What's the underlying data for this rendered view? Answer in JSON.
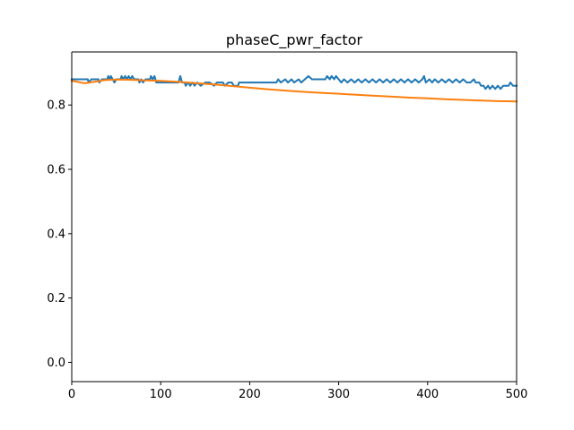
{
  "chart_data": {
    "type": "line",
    "title": "phaseC_pwr_factor",
    "xlabel": "",
    "ylabel": "",
    "xlim": [
      0,
      500
    ],
    "ylim": [
      -0.06,
      0.965
    ],
    "x_ticks": [
      0,
      100,
      200,
      300,
      400,
      500
    ],
    "y_ticks": [
      0.0,
      0.2,
      0.4,
      0.6,
      0.8
    ],
    "grid": false,
    "legend": "none",
    "series": [
      {
        "color": "#1f77b4",
        "points": [
          [
            0,
            0.88
          ],
          [
            18,
            0.88
          ],
          [
            19,
            0.87
          ],
          [
            22,
            0.88
          ],
          [
            30,
            0.88
          ],
          [
            31,
            0.87
          ],
          [
            34,
            0.88
          ],
          [
            40,
            0.88
          ],
          [
            41,
            0.89
          ],
          [
            43,
            0.88
          ],
          [
            44,
            0.89
          ],
          [
            46,
            0.88
          ],
          [
            48,
            0.87
          ],
          [
            50,
            0.88
          ],
          [
            55,
            0.88
          ],
          [
            56,
            0.89
          ],
          [
            58,
            0.88
          ],
          [
            60,
            0.89
          ],
          [
            62,
            0.88
          ],
          [
            64,
            0.89
          ],
          [
            66,
            0.88
          ],
          [
            68,
            0.89
          ],
          [
            70,
            0.88
          ],
          [
            75,
            0.88
          ],
          [
            76,
            0.87
          ],
          [
            78,
            0.88
          ],
          [
            80,
            0.87
          ],
          [
            83,
            0.88
          ],
          [
            88,
            0.88
          ],
          [
            89,
            0.89
          ],
          [
            91,
            0.88
          ],
          [
            93,
            0.89
          ],
          [
            95,
            0.87
          ],
          [
            100,
            0.87
          ],
          [
            105,
            0.87
          ],
          [
            115,
            0.87
          ],
          [
            120,
            0.87
          ],
          [
            122,
            0.89
          ],
          [
            124,
            0.87
          ],
          [
            127,
            0.87
          ],
          [
            128,
            0.86
          ],
          [
            131,
            0.87
          ],
          [
            133,
            0.86
          ],
          [
            136,
            0.87
          ],
          [
            138,
            0.86
          ],
          [
            141,
            0.87
          ],
          [
            145,
            0.86
          ],
          [
            150,
            0.87
          ],
          [
            155,
            0.87
          ],
          [
            160,
            0.86
          ],
          [
            163,
            0.87
          ],
          [
            170,
            0.87
          ],
          [
            172,
            0.86
          ],
          [
            176,
            0.87
          ],
          [
            180,
            0.87
          ],
          [
            182,
            0.86
          ],
          [
            187,
            0.86
          ],
          [
            188,
            0.87
          ],
          [
            230,
            0.87
          ],
          [
            232,
            0.88
          ],
          [
            235,
            0.87
          ],
          [
            240,
            0.88
          ],
          [
            243,
            0.87
          ],
          [
            247,
            0.88
          ],
          [
            250,
            0.87
          ],
          [
            255,
            0.88
          ],
          [
            258,
            0.87
          ],
          [
            262,
            0.88
          ],
          [
            266,
            0.89
          ],
          [
            270,
            0.88
          ],
          [
            275,
            0.88
          ],
          [
            285,
            0.88
          ],
          [
            287,
            0.89
          ],
          [
            290,
            0.88
          ],
          [
            292,
            0.89
          ],
          [
            295,
            0.88
          ],
          [
            297,
            0.89
          ],
          [
            300,
            0.88
          ],
          [
            303,
            0.87
          ],
          [
            306,
            0.88
          ],
          [
            310,
            0.87
          ],
          [
            314,
            0.88
          ],
          [
            318,
            0.87
          ],
          [
            322,
            0.88
          ],
          [
            326,
            0.87
          ],
          [
            330,
            0.88
          ],
          [
            334,
            0.87
          ],
          [
            338,
            0.88
          ],
          [
            342,
            0.87
          ],
          [
            346,
            0.88
          ],
          [
            350,
            0.87
          ],
          [
            354,
            0.88
          ],
          [
            358,
            0.87
          ],
          [
            362,
            0.88
          ],
          [
            366,
            0.87
          ],
          [
            370,
            0.88
          ],
          [
            374,
            0.87
          ],
          [
            378,
            0.88
          ],
          [
            382,
            0.87
          ],
          [
            386,
            0.88
          ],
          [
            390,
            0.87
          ],
          [
            394,
            0.88
          ],
          [
            396,
            0.89
          ],
          [
            398,
            0.87
          ],
          [
            402,
            0.88
          ],
          [
            405,
            0.87
          ],
          [
            408,
            0.88
          ],
          [
            412,
            0.87
          ],
          [
            416,
            0.88
          ],
          [
            420,
            0.87
          ],
          [
            424,
            0.88
          ],
          [
            428,
            0.87
          ],
          [
            432,
            0.88
          ],
          [
            436,
            0.87
          ],
          [
            440,
            0.88
          ],
          [
            444,
            0.87
          ],
          [
            448,
            0.87
          ],
          [
            452,
            0.88
          ],
          [
            454,
            0.87
          ],
          [
            458,
            0.87
          ],
          [
            460,
            0.86
          ],
          [
            463,
            0.86
          ],
          [
            465,
            0.85
          ],
          [
            468,
            0.86
          ],
          [
            470,
            0.85
          ],
          [
            473,
            0.86
          ],
          [
            476,
            0.85
          ],
          [
            479,
            0.86
          ],
          [
            482,
            0.85
          ],
          [
            485,
            0.86
          ],
          [
            488,
            0.86
          ],
          [
            491,
            0.86
          ],
          [
            493,
            0.87
          ],
          [
            496,
            0.86
          ],
          [
            500,
            0.86
          ]
        ]
      },
      {
        "color": "#ff7f0e",
        "points": [
          [
            0,
            0.875
          ],
          [
            5,
            0.873
          ],
          [
            10,
            0.87
          ],
          [
            15,
            0.868
          ],
          [
            20,
            0.87
          ],
          [
            25,
            0.872
          ],
          [
            30,
            0.874
          ],
          [
            35,
            0.877
          ],
          [
            40,
            0.878
          ],
          [
            50,
            0.879
          ],
          [
            60,
            0.879
          ],
          [
            80,
            0.877
          ],
          [
            100,
            0.875
          ],
          [
            120,
            0.872
          ],
          [
            140,
            0.868
          ],
          [
            160,
            0.864
          ],
          [
            180,
            0.859
          ],
          [
            200,
            0.854
          ],
          [
            220,
            0.849
          ],
          [
            240,
            0.845
          ],
          [
            260,
            0.841
          ],
          [
            280,
            0.838
          ],
          [
            300,
            0.835
          ],
          [
            320,
            0.832
          ],
          [
            340,
            0.829
          ],
          [
            360,
            0.826
          ],
          [
            380,
            0.823
          ],
          [
            400,
            0.821
          ],
          [
            420,
            0.818
          ],
          [
            440,
            0.816
          ],
          [
            460,
            0.814
          ],
          [
            480,
            0.812
          ],
          [
            500,
            0.811
          ]
        ]
      }
    ]
  }
}
